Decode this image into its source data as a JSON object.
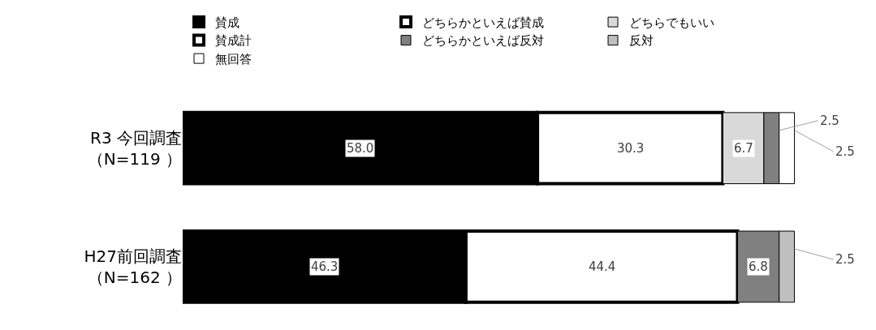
{
  "chart_data": {
    "type": "bar",
    "orientation": "horizontal",
    "stacked": true,
    "legend": "top",
    "categories": [
      "R3 今回調査（N=119 ）",
      "H27前回調査（N=162 ）"
    ],
    "series": [
      {
        "name": "賛成",
        "color": "#000000",
        "values": [
          58.0,
          46.3
        ],
        "value_labels": [
          "58.0",
          "46.3"
        ]
      },
      {
        "name": "どちらかといえば賛成",
        "color": "#ffffff",
        "values": [
          30.3,
          44.4
        ],
        "value_labels": [
          "30.3",
          "44.4"
        ]
      },
      {
        "name": "どちらでもいい",
        "color": "#d9d9d9",
        "values": [
          6.7,
          null
        ],
        "value_labels": [
          "6.7",
          null
        ]
      },
      {
        "name": "どちらかといえば反対",
        "color": "#808080",
        "values": [
          2.5,
          6.8
        ],
        "value_labels": [
          "2.5",
          "6.8"
        ]
      },
      {
        "name": "反対",
        "color": "#bfbfbf",
        "values": [
          null,
          2.5
        ],
        "value_labels": [
          null,
          "2.5"
        ]
      },
      {
        "name": "無回答",
        "color": "#ffffff",
        "values": [
          2.5,
          null
        ],
        "value_labels": [
          "2.5",
          null
        ]
      },
      {
        "name": "賛成計",
        "type": "other",
        "color": "#000000",
        "values": [
          null,
          null
        ]
      }
    ]
  }
}
